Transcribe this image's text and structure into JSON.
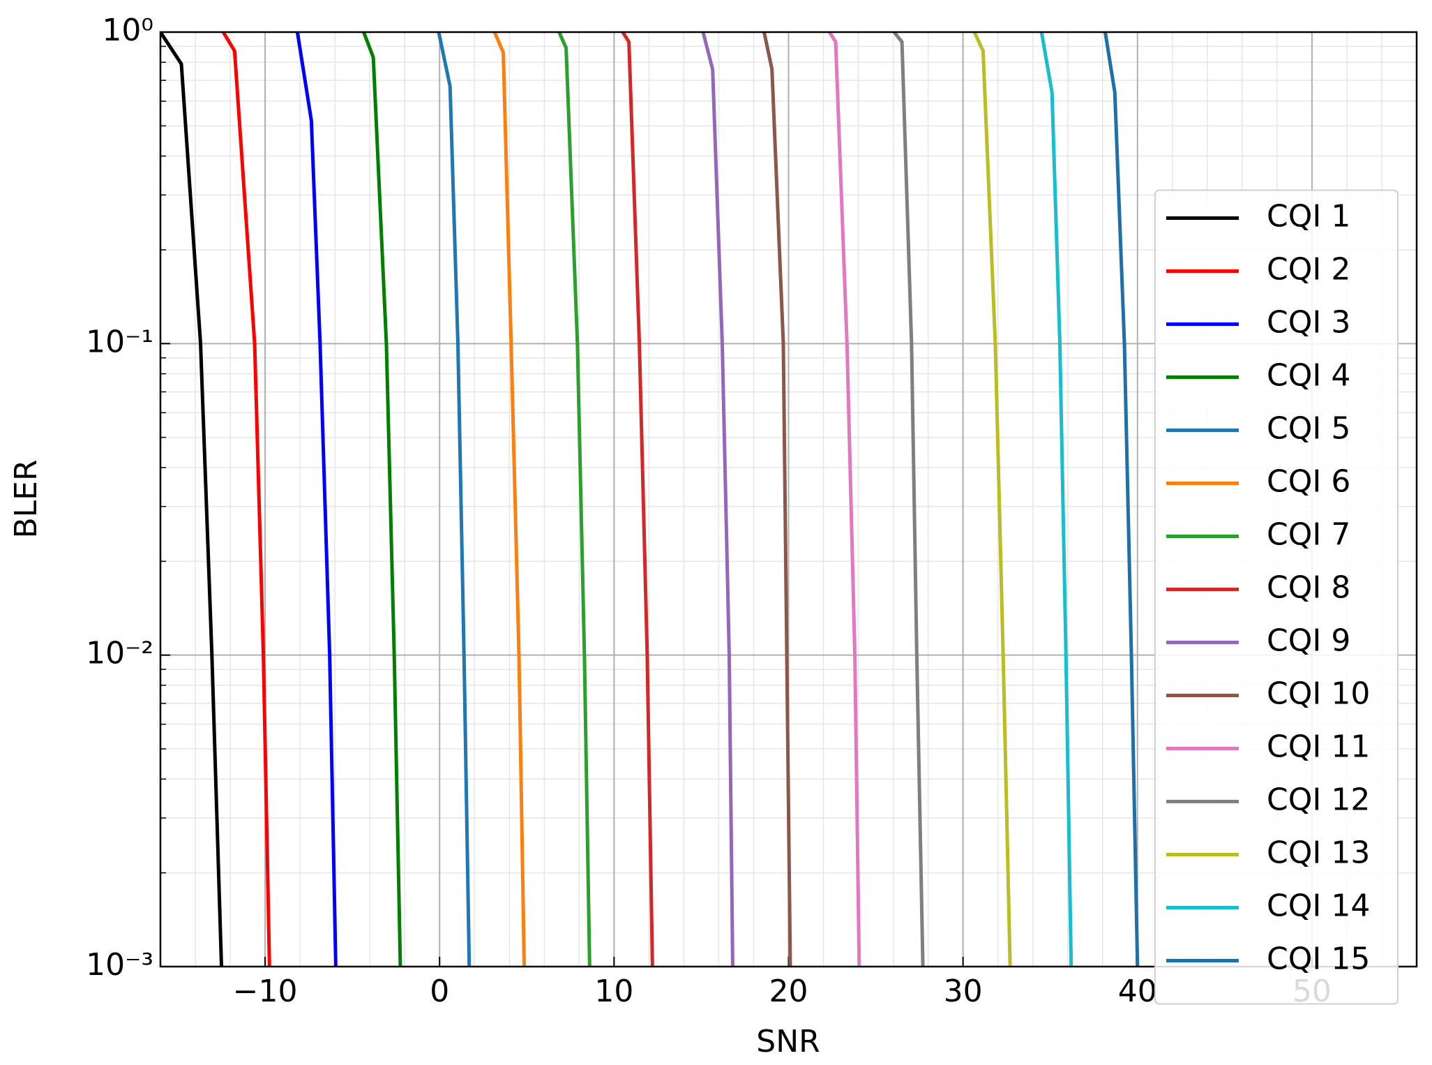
{
  "chart_data": {
    "type": "line",
    "x_label": "SNR",
    "y_label": "BLER",
    "xlim": [
      -16,
      56
    ],
    "ylim": [
      0.001,
      1
    ],
    "log_y": true,
    "grid": true,
    "minor_grid": true,
    "legend": "right",
    "xticks": [
      {
        "value": -10,
        "label": "−10"
      },
      0,
      10,
      20,
      30,
      40,
      50
    ],
    "yticks": [
      {
        "value": 0.001,
        "label": "10⁻³"
      },
      {
        "value": 0.01,
        "label": "10⁻²"
      },
      {
        "value": 0.1,
        "label": "10⁻¹"
      },
      {
        "value": 1,
        "label": "10⁰"
      }
    ],
    "series": [
      {
        "name": "CQI 1",
        "color": "#000000",
        "x": [
          -16,
          -14.8,
          -13.7,
          -13.05,
          -12.5
        ],
        "values": [
          1,
          0.79,
          0.1,
          0.01,
          0.001
        ]
      },
      {
        "name": "CQI 2",
        "color": "#ff0000",
        "x": [
          -12.4,
          -11.75,
          -10.6,
          -10.1,
          -9.75
        ],
        "values": [
          1,
          0.87,
          0.1,
          0.01,
          0.001
        ]
      },
      {
        "name": "CQI 3",
        "color": "#0000ff",
        "x": [
          -8.15,
          -7.35,
          -6.85,
          -6.3,
          -5.95
        ],
        "values": [
          1,
          0.52,
          0.1,
          0.01,
          0.001
        ]
      },
      {
        "name": "CQI 4",
        "color": "#008000",
        "x": [
          -4.35,
          -3.8,
          -3.05,
          -2.6,
          -2.25
        ],
        "values": [
          1,
          0.83,
          0.1,
          0.01,
          0.001
        ]
      },
      {
        "name": "CQI 5",
        "color": "#1f77b4",
        "x": [
          -0.05,
          0.6,
          1.05,
          1.4,
          1.7
        ],
        "values": [
          1,
          0.67,
          0.1,
          0.01,
          0.001
        ]
      },
      {
        "name": "CQI 6",
        "color": "#ff7f0e",
        "x": [
          3.15,
          3.65,
          4.1,
          4.55,
          4.85
        ],
        "values": [
          1,
          0.86,
          0.1,
          0.01,
          0.001
        ]
      },
      {
        "name": "CQI 7",
        "color": "#2ca02c",
        "x": [
          6.85,
          7.25,
          7.9,
          8.3,
          8.6
        ],
        "values": [
          1,
          0.89,
          0.1,
          0.01,
          0.001
        ]
      },
      {
        "name": "CQI 8",
        "color": "#d62728",
        "x": [
          10.5,
          10.85,
          11.45,
          11.9,
          12.2
        ],
        "values": [
          1,
          0.93,
          0.1,
          0.01,
          0.001
        ]
      },
      {
        "name": "CQI 9",
        "color": "#9467bd",
        "x": [
          15.1,
          15.65,
          16.2,
          16.6,
          16.8
        ],
        "values": [
          1,
          0.76,
          0.1,
          0.01,
          0.001
        ]
      },
      {
        "name": "CQI 10",
        "color": "#8c564b",
        "x": [
          18.6,
          19.05,
          19.7,
          19.9,
          20.1
        ],
        "values": [
          1,
          0.76,
          0.1,
          0.01,
          0.001
        ]
      },
      {
        "name": "CQI 11",
        "color": "#e377c2",
        "x": [
          22.35,
          22.7,
          23.35,
          23.8,
          24.05
        ],
        "values": [
          1,
          0.93,
          0.1,
          0.01,
          0.001
        ]
      },
      {
        "name": "CQI 12",
        "color": "#7f7f7f",
        "x": [
          26.05,
          26.5,
          27.05,
          27.35,
          27.7
        ],
        "values": [
          1,
          0.93,
          0.1,
          0.01,
          0.001
        ]
      },
      {
        "name": "CQI 13",
        "color": "#bcbd22",
        "x": [
          30.65,
          31.15,
          31.85,
          32.3,
          32.7
        ],
        "values": [
          1,
          0.87,
          0.1,
          0.01,
          0.001
        ]
      },
      {
        "name": "CQI 14",
        "color": "#17becf",
        "x": [
          34.5,
          35.1,
          35.55,
          35.9,
          36.2
        ],
        "values": [
          1,
          0.64,
          0.1,
          0.01,
          0.001
        ]
      },
      {
        "name": "CQI 15",
        "color": "#1f6fa8",
        "x": [
          38.15,
          38.7,
          39.25,
          39.65,
          40
        ],
        "values": [
          1,
          0.64,
          0.1,
          0.01,
          0.001
        ]
      }
    ]
  }
}
